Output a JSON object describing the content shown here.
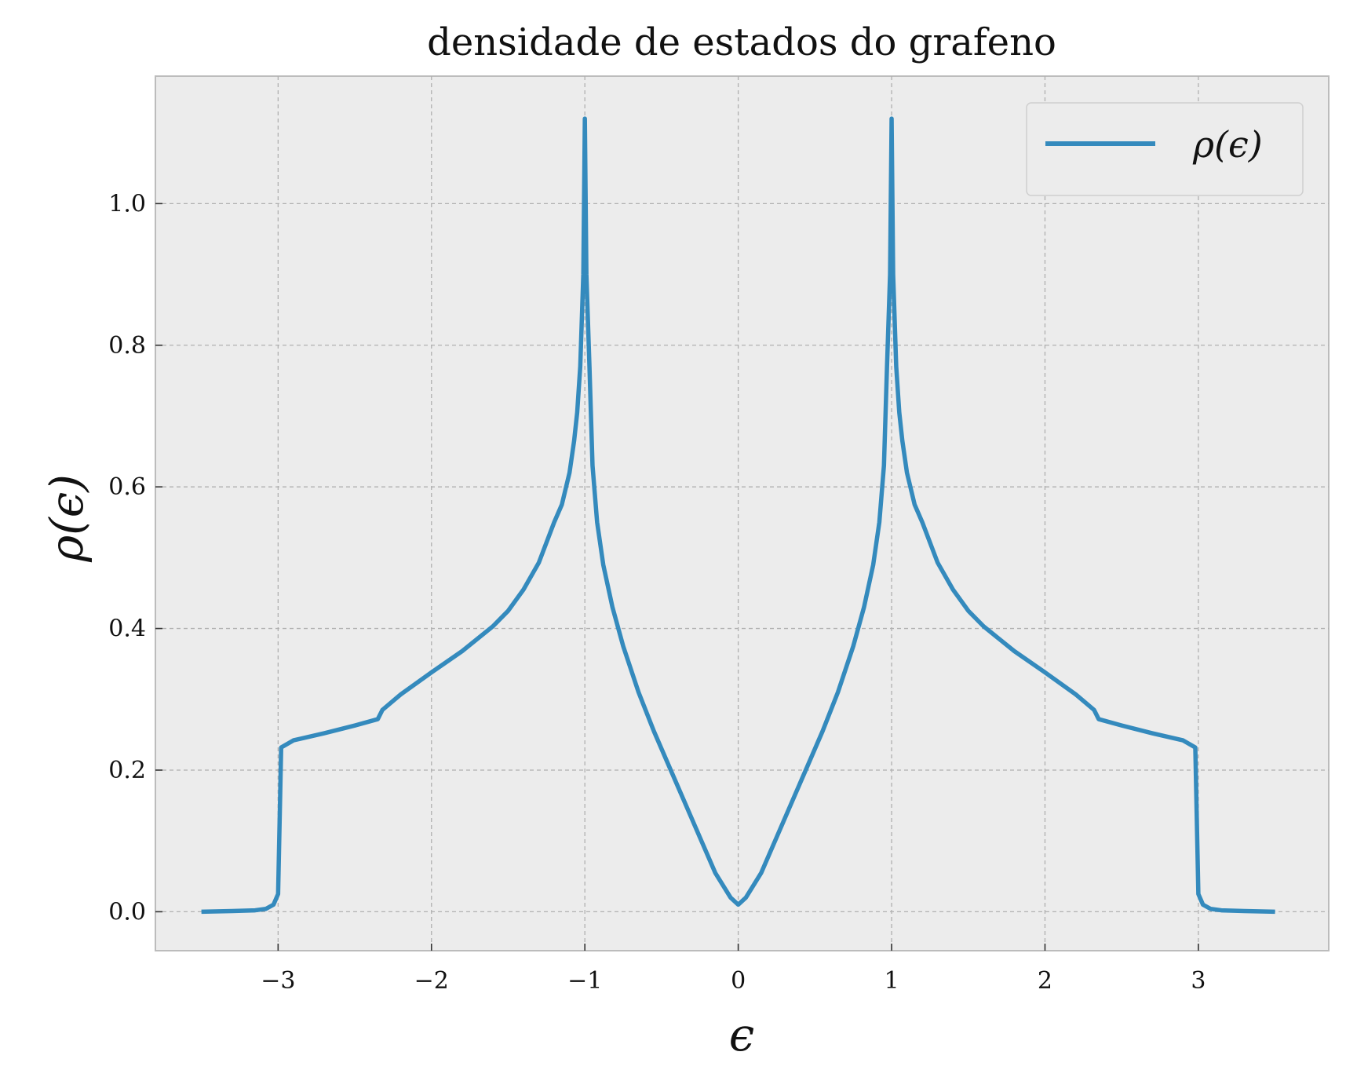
{
  "chart_data": {
    "type": "line",
    "title": "densidade de estados do grafeno",
    "xlabel": "ϵ",
    "ylabel": "ρ(ϵ)",
    "xlim": [
      -3.8,
      3.85
    ],
    "ylim": [
      -0.055,
      1.18
    ],
    "x_ticks": [
      -3,
      -2,
      -1,
      0,
      1,
      2,
      3
    ],
    "x_tick_labels": [
      "−3",
      "−2",
      "−1",
      "0",
      "1",
      "2",
      "3"
    ],
    "y_ticks": [
      0.0,
      0.2,
      0.4,
      0.6,
      0.8,
      1.0
    ],
    "y_tick_labels": [
      "0.0",
      "0.2",
      "0.4",
      "0.6",
      "0.8",
      "1.0"
    ],
    "grid": true,
    "legend_position": "top-right",
    "background_color": "#ececec",
    "series": [
      {
        "name": "ρ(ϵ)",
        "color": "#348abd",
        "x": [
          -3.5,
          -3.3,
          -3.15,
          -3.08,
          -3.03,
          -3.0,
          -2.98,
          -2.9,
          -2.7,
          -2.5,
          -2.35,
          -2.32,
          -2.2,
          -2.0,
          -1.8,
          -1.6,
          -1.5,
          -1.4,
          -1.3,
          -1.2,
          -1.15,
          -1.1,
          -1.07,
          -1.05,
          -1.03,
          -1.01,
          -1.0,
          -0.99,
          -0.97,
          -0.95,
          -0.92,
          -0.88,
          -0.82,
          -0.75,
          -0.65,
          -0.55,
          -0.45,
          -0.35,
          -0.25,
          -0.15,
          -0.05,
          0.0,
          0.05,
          0.15,
          0.25,
          0.35,
          0.45,
          0.55,
          0.65,
          0.75,
          0.82,
          0.88,
          0.92,
          0.95,
          0.97,
          0.99,
          1.0,
          1.01,
          1.03,
          1.05,
          1.07,
          1.1,
          1.15,
          1.2,
          1.3,
          1.4,
          1.5,
          1.6,
          1.8,
          2.0,
          2.2,
          2.32,
          2.35,
          2.5,
          2.7,
          2.9,
          2.98,
          3.0,
          3.03,
          3.08,
          3.15,
          3.3,
          3.5
        ],
        "y": [
          0.0,
          0.001,
          0.002,
          0.004,
          0.01,
          0.025,
          0.232,
          0.242,
          0.252,
          0.263,
          0.272,
          0.285,
          0.307,
          0.338,
          0.368,
          0.403,
          0.425,
          0.455,
          0.493,
          0.55,
          0.575,
          0.62,
          0.665,
          0.705,
          0.77,
          0.9,
          1.12,
          0.9,
          0.77,
          0.63,
          0.55,
          0.49,
          0.43,
          0.375,
          0.31,
          0.255,
          0.205,
          0.155,
          0.105,
          0.055,
          0.02,
          0.01,
          0.02,
          0.055,
          0.105,
          0.155,
          0.205,
          0.255,
          0.31,
          0.375,
          0.43,
          0.49,
          0.55,
          0.63,
          0.77,
          0.9,
          1.12,
          0.9,
          0.77,
          0.705,
          0.665,
          0.62,
          0.575,
          0.55,
          0.493,
          0.455,
          0.425,
          0.403,
          0.368,
          0.338,
          0.307,
          0.285,
          0.272,
          0.263,
          0.252,
          0.242,
          0.232,
          0.025,
          0.01,
          0.004,
          0.002,
          0.001,
          0.0
        ]
      }
    ]
  }
}
